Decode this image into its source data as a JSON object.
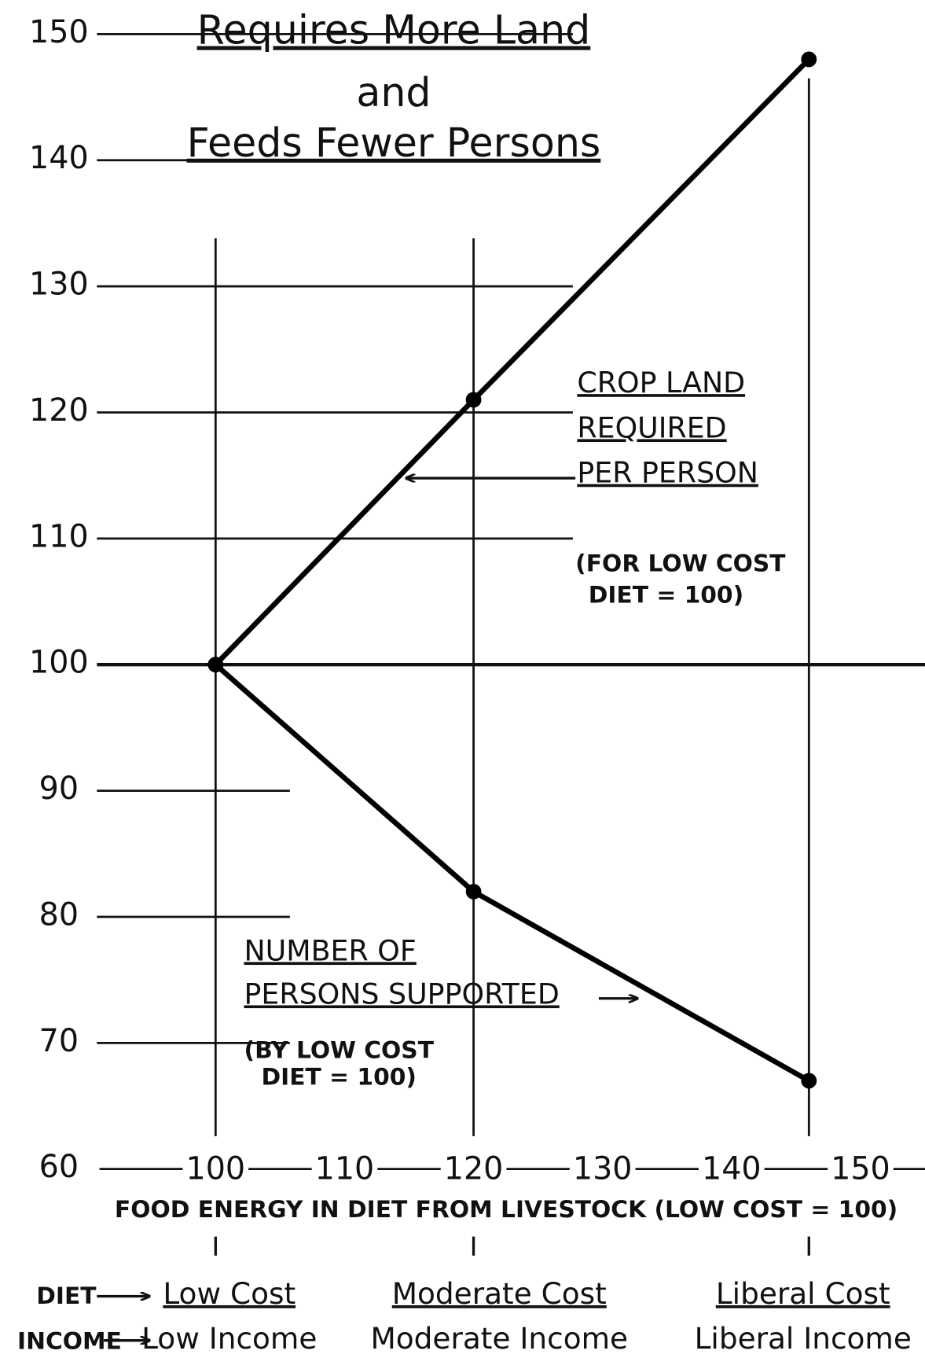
{
  "chart_data": {
    "type": "line",
    "title": [
      "Requires More Land",
      "and",
      "Feeds Fewer Persons"
    ],
    "x": [
      100,
      120,
      146
    ],
    "xlim": [
      91,
      155
    ],
    "xticks": [
      100,
      110,
      120,
      130,
      140,
      150
    ],
    "xlabel": "FOOD ENERGY IN DIET FROM LIVESTOCK  (LOW COST = 100)",
    "ylim": [
      60,
      152
    ],
    "yticks": [
      60,
      70,
      80,
      90,
      100,
      110,
      120,
      130,
      140,
      150
    ],
    "grid": true,
    "series": [
      {
        "name": [
          "CROP LAND",
          "REQUIRED",
          "PER PERSON"
        ],
        "note": [
          "(FOR LOW COST",
          "DIET = 100)"
        ],
        "color": "#000000",
        "values": [
          100,
          121,
          148
        ]
      },
      {
        "name": [
          "NUMBER OF",
          "PERSONS SUPPORTED"
        ],
        "note": [
          "(BY LOW COST",
          "DIET = 100)"
        ],
        "color": "#000000",
        "values": [
          100,
          82,
          67
        ]
      }
    ],
    "diet_label": "DIET",
    "income_label": "INCOME",
    "diets": [
      "Low Cost",
      "Moderate Cost",
      "Liberal Cost"
    ],
    "incomes": [
      "Low Income",
      "Moderate Income",
      "Liberal Income"
    ]
  }
}
